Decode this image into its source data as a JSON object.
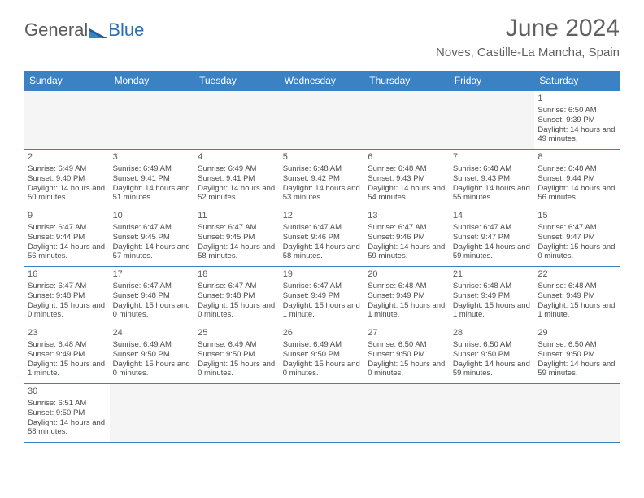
{
  "logo": {
    "part1": "General",
    "part2": "Blue"
  },
  "title": "June 2024",
  "location": "Noves, Castille-La Mancha, Spain",
  "colors": {
    "header_bg": "#3a82c4",
    "header_text": "#ffffff",
    "border": "#3a82c4",
    "text": "#4a4a4a",
    "title_text": "#606060",
    "logo_gray": "#5a5a5a",
    "logo_blue": "#2a6fb5",
    "empty_bg": "#f5f5f5"
  },
  "day_headers": [
    "Sunday",
    "Monday",
    "Tuesday",
    "Wednesday",
    "Thursday",
    "Friday",
    "Saturday"
  ],
  "weeks": [
    [
      null,
      null,
      null,
      null,
      null,
      null,
      {
        "n": "1",
        "sr": "6:50 AM",
        "ss": "9:39 PM",
        "dl": "14 hours and 49 minutes."
      }
    ],
    [
      {
        "n": "2",
        "sr": "6:49 AM",
        "ss": "9:40 PM",
        "dl": "14 hours and 50 minutes."
      },
      {
        "n": "3",
        "sr": "6:49 AM",
        "ss": "9:41 PM",
        "dl": "14 hours and 51 minutes."
      },
      {
        "n": "4",
        "sr": "6:49 AM",
        "ss": "9:41 PM",
        "dl": "14 hours and 52 minutes."
      },
      {
        "n": "5",
        "sr": "6:48 AM",
        "ss": "9:42 PM",
        "dl": "14 hours and 53 minutes."
      },
      {
        "n": "6",
        "sr": "6:48 AM",
        "ss": "9:43 PM",
        "dl": "14 hours and 54 minutes."
      },
      {
        "n": "7",
        "sr": "6:48 AM",
        "ss": "9:43 PM",
        "dl": "14 hours and 55 minutes."
      },
      {
        "n": "8",
        "sr": "6:48 AM",
        "ss": "9:44 PM",
        "dl": "14 hours and 56 minutes."
      }
    ],
    [
      {
        "n": "9",
        "sr": "6:47 AM",
        "ss": "9:44 PM",
        "dl": "14 hours and 56 minutes."
      },
      {
        "n": "10",
        "sr": "6:47 AM",
        "ss": "9:45 PM",
        "dl": "14 hours and 57 minutes."
      },
      {
        "n": "11",
        "sr": "6:47 AM",
        "ss": "9:45 PM",
        "dl": "14 hours and 58 minutes."
      },
      {
        "n": "12",
        "sr": "6:47 AM",
        "ss": "9:46 PM",
        "dl": "14 hours and 58 minutes."
      },
      {
        "n": "13",
        "sr": "6:47 AM",
        "ss": "9:46 PM",
        "dl": "14 hours and 59 minutes."
      },
      {
        "n": "14",
        "sr": "6:47 AM",
        "ss": "9:47 PM",
        "dl": "14 hours and 59 minutes."
      },
      {
        "n": "15",
        "sr": "6:47 AM",
        "ss": "9:47 PM",
        "dl": "15 hours and 0 minutes."
      }
    ],
    [
      {
        "n": "16",
        "sr": "6:47 AM",
        "ss": "9:48 PM",
        "dl": "15 hours and 0 minutes."
      },
      {
        "n": "17",
        "sr": "6:47 AM",
        "ss": "9:48 PM",
        "dl": "15 hours and 0 minutes."
      },
      {
        "n": "18",
        "sr": "6:47 AM",
        "ss": "9:48 PM",
        "dl": "15 hours and 0 minutes."
      },
      {
        "n": "19",
        "sr": "6:47 AM",
        "ss": "9:49 PM",
        "dl": "15 hours and 1 minute."
      },
      {
        "n": "20",
        "sr": "6:48 AM",
        "ss": "9:49 PM",
        "dl": "15 hours and 1 minute."
      },
      {
        "n": "21",
        "sr": "6:48 AM",
        "ss": "9:49 PM",
        "dl": "15 hours and 1 minute."
      },
      {
        "n": "22",
        "sr": "6:48 AM",
        "ss": "9:49 PM",
        "dl": "15 hours and 1 minute."
      }
    ],
    [
      {
        "n": "23",
        "sr": "6:48 AM",
        "ss": "9:49 PM",
        "dl": "15 hours and 1 minute."
      },
      {
        "n": "24",
        "sr": "6:49 AM",
        "ss": "9:50 PM",
        "dl": "15 hours and 0 minutes."
      },
      {
        "n": "25",
        "sr": "6:49 AM",
        "ss": "9:50 PM",
        "dl": "15 hours and 0 minutes."
      },
      {
        "n": "26",
        "sr": "6:49 AM",
        "ss": "9:50 PM",
        "dl": "15 hours and 0 minutes."
      },
      {
        "n": "27",
        "sr": "6:50 AM",
        "ss": "9:50 PM",
        "dl": "15 hours and 0 minutes."
      },
      {
        "n": "28",
        "sr": "6:50 AM",
        "ss": "9:50 PM",
        "dl": "14 hours and 59 minutes."
      },
      {
        "n": "29",
        "sr": "6:50 AM",
        "ss": "9:50 PM",
        "dl": "14 hours and 59 minutes."
      }
    ],
    [
      {
        "n": "30",
        "sr": "6:51 AM",
        "ss": "9:50 PM",
        "dl": "14 hours and 58 minutes."
      },
      null,
      null,
      null,
      null,
      null,
      null
    ]
  ],
  "labels": {
    "sunrise": "Sunrise: ",
    "sunset": "Sunset: ",
    "daylight": "Daylight: "
  }
}
